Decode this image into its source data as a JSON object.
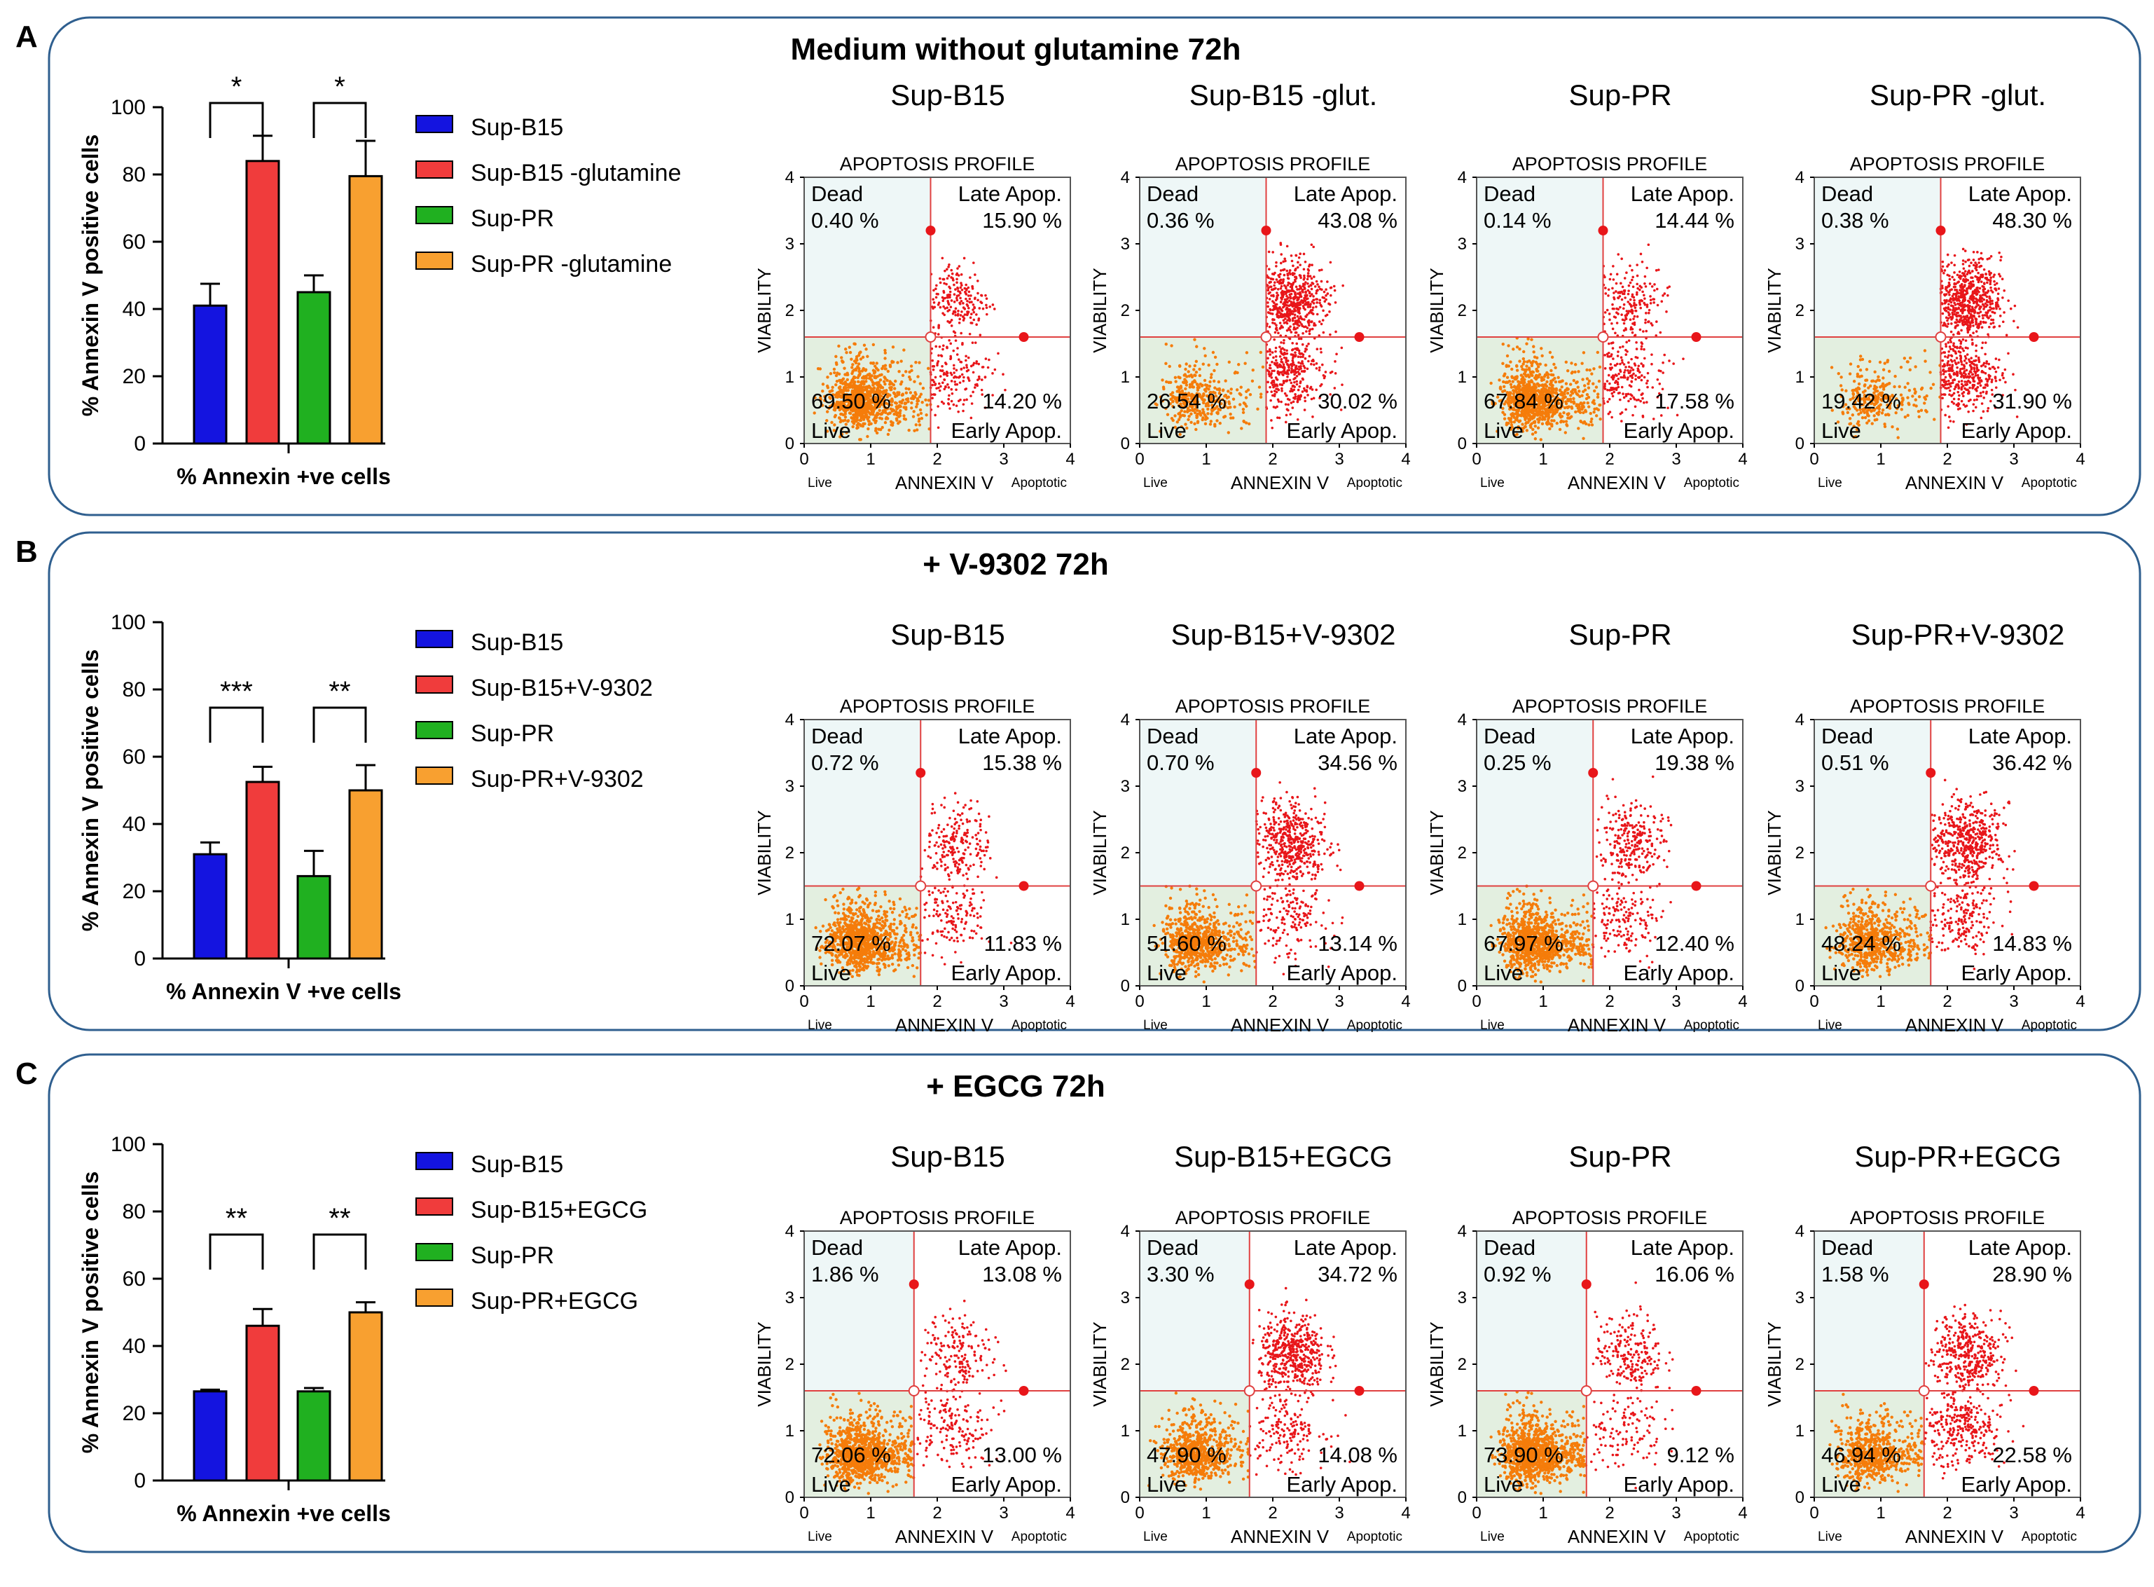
{
  "chart_data": [
    {
      "panel": "A",
      "title": "Medium without glutamine 72h",
      "bar_chart": {
        "type": "bar",
        "ylabel": "% Annexin V positive cells",
        "xlabel": "% Annexin +ve cells",
        "ylim": [
          0,
          100
        ],
        "yticks": [
          0,
          20,
          40,
          60,
          80,
          100
        ],
        "bars": [
          {
            "name": "Sup-B15",
            "value": 41,
            "error": 6.5,
            "color": "#1414e0"
          },
          {
            "name": "Sup-B15 -glutamine",
            "value": 84,
            "error": 7.5,
            "color": "#f03c3c"
          },
          {
            "name": "Sup-PR",
            "value": 45,
            "error": 5,
            "color": "#20b020"
          },
          {
            "name": "Sup-PR -glutamine",
            "value": 79.5,
            "error": 10.5,
            "color": "#f8a030"
          }
        ],
        "significance": [
          {
            "from": 0,
            "to": 1,
            "label": "*"
          },
          {
            "from": 2,
            "to": 3,
            "label": "*"
          }
        ]
      },
      "flow_plots": [
        {
          "sample": "Sup-B15",
          "dead": "0.40 %",
          "late": "15.90 %",
          "live": "69.50 %",
          "early": "14.20 %",
          "gate_x": 1.9,
          "gate_y": 1.6
        },
        {
          "sample": "Sup-B15 -glut.",
          "dead": "0.36 %",
          "late": "43.08 %",
          "live": "26.54 %",
          "early": "30.02 %",
          "gate_x": 1.9,
          "gate_y": 1.6
        },
        {
          "sample": "Sup-PR",
          "dead": "0.14 %",
          "late": "14.44 %",
          "live": "67.84 %",
          "early": "17.58 %",
          "gate_x": 1.9,
          "gate_y": 1.6
        },
        {
          "sample": "Sup-PR -glut.",
          "dead": "0.38 %",
          "late": "48.30 %",
          "live": "19.42 %",
          "early": "31.90 %",
          "gate_x": 1.9,
          "gate_y": 1.6
        }
      ]
    },
    {
      "panel": "B",
      "title": "+ V-9302 72h",
      "bar_chart": {
        "type": "bar",
        "ylabel": "% Annexin V positive cells",
        "xlabel": "% Annexin V +ve cells",
        "ylim": [
          0,
          100
        ],
        "yticks": [
          0,
          20,
          40,
          60,
          80,
          100
        ],
        "bars": [
          {
            "name": "Sup-B15",
            "value": 31,
            "error": 3.5,
            "color": "#1414e0"
          },
          {
            "name": "Sup-B15+V-9302",
            "value": 52.5,
            "error": 4.5,
            "color": "#f03c3c"
          },
          {
            "name": "Sup-PR",
            "value": 24.5,
            "error": 7.5,
            "color": "#20b020"
          },
          {
            "name": "Sup-PR+V-9302",
            "value": 50,
            "error": 7.5,
            "color": "#f8a030"
          }
        ],
        "significance": [
          {
            "from": 0,
            "to": 1,
            "label": "***"
          },
          {
            "from": 2,
            "to": 3,
            "label": "**"
          }
        ]
      },
      "flow_plots": [
        {
          "sample": "Sup-B15",
          "dead": "0.72 %",
          "late": "15.38 %",
          "live": "72.07 %",
          "early": "11.83 %",
          "gate_x": 1.75,
          "gate_y": 1.5
        },
        {
          "sample": "Sup-B15+V-9302",
          "dead": "0.70 %",
          "late": "34.56 %",
          "live": "51.60 %",
          "early": "13.14 %",
          "gate_x": 1.75,
          "gate_y": 1.5
        },
        {
          "sample": "Sup-PR",
          "dead": "0.25 %",
          "late": "19.38 %",
          "live": "67.97 %",
          "early": "12.40 %",
          "gate_x": 1.75,
          "gate_y": 1.5
        },
        {
          "sample": "Sup-PR+V-9302",
          "dead": "0.51 %",
          "late": "36.42 %",
          "live": "48.24 %",
          "early": "14.83 %",
          "gate_x": 1.75,
          "gate_y": 1.5
        }
      ]
    },
    {
      "panel": "C",
      "title": "+ EGCG 72h",
      "bar_chart": {
        "type": "bar",
        "ylabel": "% Annexin V positive cells",
        "xlabel": "% Annexin +ve cells",
        "ylim": [
          0,
          100
        ],
        "yticks": [
          0,
          20,
          40,
          60,
          80,
          100
        ],
        "bars": [
          {
            "name": "Sup-B15",
            "value": 26.5,
            "error": 0.5,
            "color": "#1414e0"
          },
          {
            "name": "Sup-B15+EGCG",
            "value": 46,
            "error": 5,
            "color": "#f03c3c"
          },
          {
            "name": "Sup-PR",
            "value": 26.5,
            "error": 1,
            "color": "#20b020"
          },
          {
            "name": "Sup-PR+EGCG",
            "value": 50,
            "error": 3,
            "color": "#f8a030"
          }
        ],
        "significance": [
          {
            "from": 0,
            "to": 1,
            "label": "**"
          },
          {
            "from": 2,
            "to": 3,
            "label": "**"
          }
        ]
      },
      "flow_plots": [
        {
          "sample": "Sup-B15",
          "dead": "1.86 %",
          "late": "13.08 %",
          "live": "72.06 %",
          "early": "13.00 %",
          "gate_x": 1.65,
          "gate_y": 1.6
        },
        {
          "sample": "Sup-B15+EGCG",
          "dead": "3.30 %",
          "late": "34.72 %",
          "live": "47.90 %",
          "early": "14.08 %",
          "gate_x": 1.65,
          "gate_y": 1.6
        },
        {
          "sample": "Sup-PR",
          "dead": "0.92 %",
          "late": "16.06 %",
          "live": "73.90 %",
          "early": "9.12 %",
          "gate_x": 1.65,
          "gate_y": 1.6
        },
        {
          "sample": "Sup-PR+EGCG",
          "dead": "1.58 %",
          "late": "28.90 %",
          "live": "46.94 %",
          "early": "22.58 %",
          "gate_x": 1.65,
          "gate_y": 1.6
        }
      ]
    }
  ],
  "flow_labels": {
    "header": "APOPTOSIS PROFILE",
    "dead": "Dead",
    "late": "Late Apop.",
    "live": "Live",
    "early": "Early Apop.",
    "xaxis": "ANNEXIN V",
    "yaxis": "VIABILITY",
    "x_left": "Live",
    "x_right": "Apoptotic",
    "ticks": [
      "0",
      "1",
      "2",
      "3",
      "4"
    ]
  },
  "colors": {
    "panel_border": "#2f5f8f",
    "gate_line": "#e04040",
    "gate_fill": "#e3efe0",
    "dot_red": "#e8161a",
    "dot_orange": "#f57c0a"
  }
}
